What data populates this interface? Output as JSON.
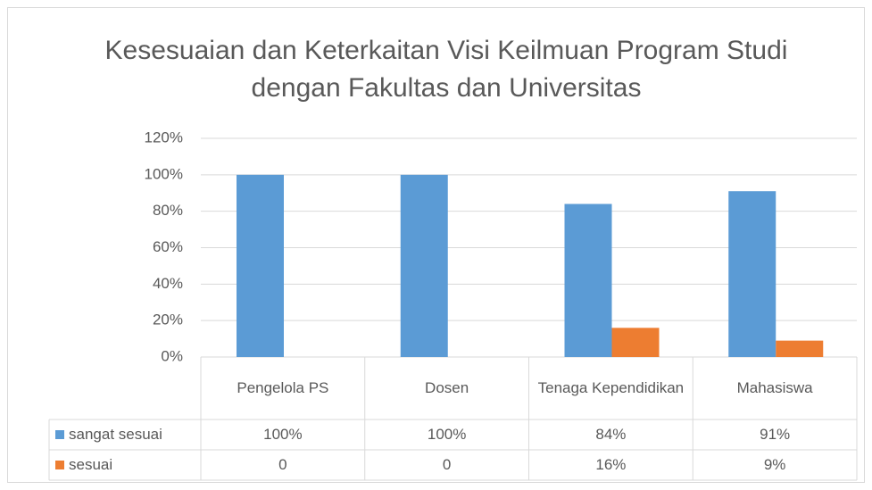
{
  "chart_data": {
    "type": "bar",
    "title": "Kesesuaian dan Keterkaitan Visi Keilmuan Program Studi dengan Fakultas dan Universitas",
    "categories": [
      "Pengelola PS",
      "Dosen",
      "Tenaga Kependidikan",
      "Mahasiswa"
    ],
    "series": [
      {
        "name": "sangat sesuai",
        "color": "#5b9bd5",
        "values": [
          100,
          100,
          84,
          91
        ],
        "value_labels": [
          "100%",
          "100%",
          "84%",
          "91%"
        ]
      },
      {
        "name": "sesuai",
        "color": "#ed7d31",
        "values": [
          0,
          0,
          16,
          9
        ],
        "value_labels": [
          "0",
          "0",
          "16%",
          "9%"
        ]
      }
    ],
    "ylim": [
      0,
      120
    ],
    "yticks": [
      {
        "value": 0,
        "label": "0%"
      },
      {
        "value": 20,
        "label": "20%"
      },
      {
        "value": 40,
        "label": "40%"
      },
      {
        "value": 60,
        "label": "60%"
      },
      {
        "value": 80,
        "label": "80%"
      },
      {
        "value": 100,
        "label": "100%"
      },
      {
        "value": 120,
        "label": "120%"
      }
    ],
    "grid": true,
    "data_table": true
  }
}
